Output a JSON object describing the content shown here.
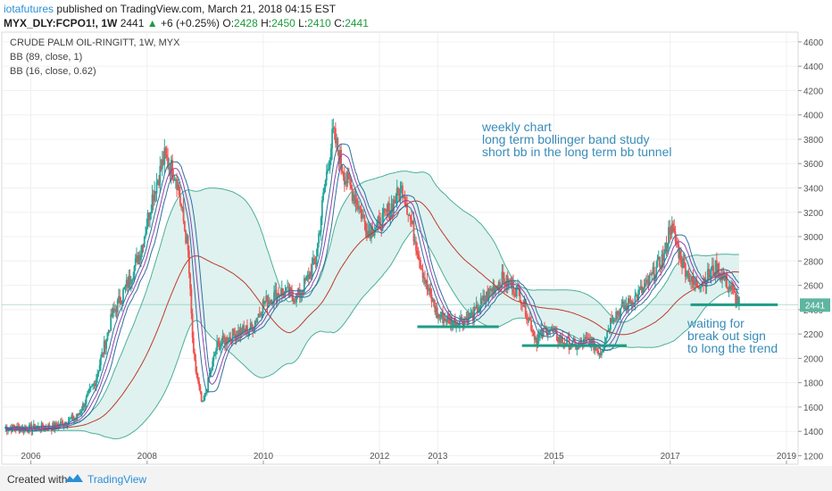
{
  "header": {
    "author": "iotafutures",
    "published": "published on TradingView.com, March 21, 2018 04:15 EST",
    "symbol": "MYX_DLY:FCPO1!, 1W",
    "last": "2441",
    "change": "+6 (+0.25%)",
    "o_label": "O:",
    "o_val": "2428",
    "h_label": "H:",
    "h_val": "2450",
    "l_label": "L:",
    "l_val": "2410",
    "c_label": "C:",
    "c_val": "2441"
  },
  "legend": {
    "title": "CRUDE PALM OIL-RINGITT, 1W, MYX",
    "bb1": "BB (89, close, 1)",
    "bb2": "BB (16, close, 0.62)"
  },
  "annotations": {
    "note1": "weekly chart",
    "note2": "long term bollinger band study",
    "note3": "short bb in the long term bb tunnel",
    "wait1": "waiting for",
    "wait2": "break out sign",
    "wait3": "to long the trend"
  },
  "footer": {
    "created": "Created with",
    "brand": "TradingView"
  },
  "colors": {
    "up": "#26a69a",
    "down": "#ef5350",
    "band_fill": "#dff2ef",
    "band_line": "#4caf9a",
    "mid_line": "#c0392b",
    "annotation": "#3a8cb8",
    "support": "#1e9c86",
    "price_label": "#5eb5a0"
  },
  "chart_data": {
    "type": "line",
    "title": "CRUDE PALM OIL-RINGITT, 1W, MYX",
    "xlabel": "",
    "ylabel": "",
    "x_ticks": [
      "2006",
      "2008",
      "2010",
      "2012",
      "2013",
      "2015",
      "2017",
      "2019"
    ],
    "y_ticks": [
      1200,
      1400,
      1600,
      1800,
      2000,
      2200,
      2400,
      2600,
      2800,
      3000,
      3200,
      3400,
      3600,
      3800,
      4000,
      4200,
      4400,
      4600
    ],
    "ylim": [
      1130,
      4680
    ],
    "xlim": [
      2005.5,
      2019.2
    ],
    "last_price": 2441,
    "series": [
      {
        "name": "price",
        "x": [
          2005.55,
          2005.9,
          2006.4,
          2006.8,
          2007.1,
          2007.4,
          2007.7,
          2007.9,
          2008.1,
          2008.3,
          2008.5,
          2008.7,
          2008.8,
          2008.95,
          2009.2,
          2009.5,
          2009.8,
          2010.0,
          2010.3,
          2010.6,
          2010.9,
          2011.05,
          2011.2,
          2011.4,
          2011.6,
          2011.8,
          2012.0,
          2012.2,
          2012.4,
          2012.6,
          2012.8,
          2013.0,
          2013.3,
          2013.6,
          2013.9,
          2014.1,
          2014.4,
          2014.7,
          2014.9,
          2015.1,
          2015.4,
          2015.6,
          2015.8,
          2016.0,
          2016.3,
          2016.6,
          2016.9,
          2017.0,
          2017.2,
          2017.4,
          2017.6,
          2017.8,
          2018.0,
          2018.2
        ],
        "y": [
          1430,
          1420,
          1440,
          1520,
          1800,
          2350,
          2650,
          2900,
          3350,
          3650,
          3500,
          2900,
          2000,
          1600,
          2100,
          2200,
          2250,
          2450,
          2550,
          2500,
          2800,
          3400,
          3850,
          3500,
          3300,
          3050,
          3100,
          3250,
          3400,
          3000,
          2600,
          2350,
          2300,
          2350,
          2550,
          2650,
          2550,
          2150,
          2250,
          2150,
          2100,
          2150,
          2050,
          2350,
          2450,
          2600,
          2850,
          3100,
          2800,
          2600,
          2650,
          2750,
          2600,
          2441
        ]
      }
    ]
  }
}
